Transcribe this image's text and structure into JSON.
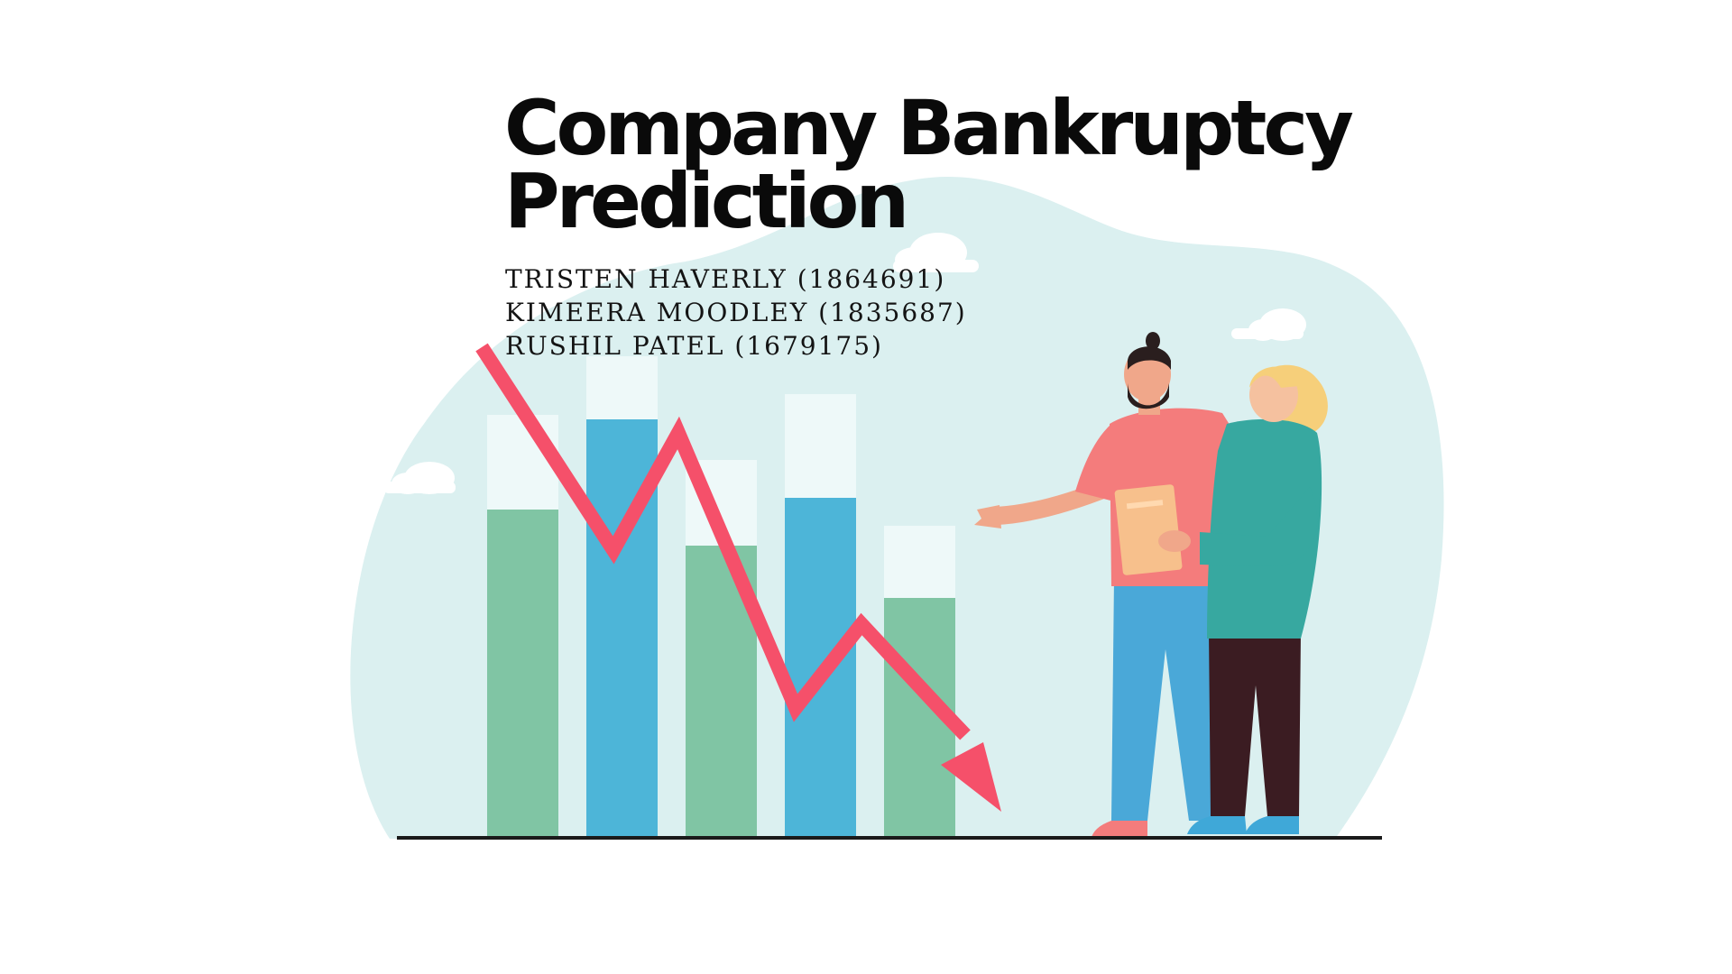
{
  "slide": {
    "title_lines": [
      "Company Bankruptcy",
      "Prediction"
    ],
    "authors": [
      "TRISTEN HAVERLY (1864691)",
      "KIMEERA MOODLEY (1835687)",
      "RUSHIL PATEL (1679175)"
    ]
  },
  "colors": {
    "background": "#ffffff",
    "backdrop_blob": "#dbf0f0",
    "bar_green": "#80c5a4",
    "bar_blue": "#4db5d8",
    "bar_top": "#eef9f9",
    "arrow": "#f5506a",
    "ground": "#1a1a1a",
    "man_shirt": "#f47c7c",
    "man_pants": "#4aa8d8",
    "woman_sweater": "#37a8a0",
    "woman_pants": "#3b1c22",
    "woman_hair": "#f6cf7a",
    "clipboard": "#f7c08c"
  },
  "illustration": {
    "icons": [
      "cloud-icon",
      "bar-chart-icon",
      "trend-down-arrow-icon",
      "person-man-icon",
      "person-woman-icon",
      "clipboard-icon"
    ]
  }
}
